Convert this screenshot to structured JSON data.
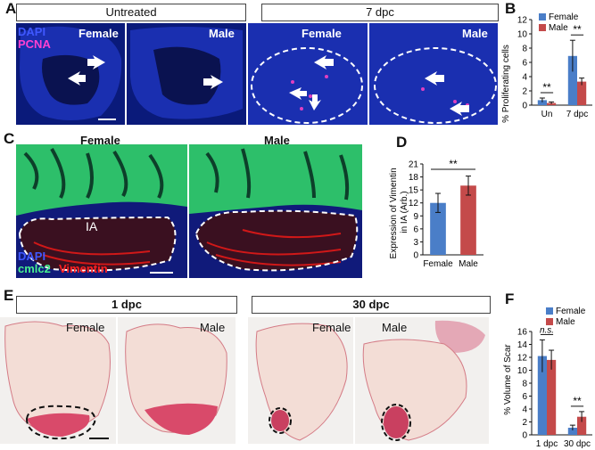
{
  "panel_labels": {
    "a": "A",
    "b": "B",
    "c": "C",
    "d": "D",
    "e": "E",
    "f": "F"
  },
  "row_a": {
    "group_untreated": "Untreated",
    "group_7dpc": "7 dpc",
    "stain_dapi": "DAPI",
    "stain_pcna": "PCNA",
    "images": [
      {
        "label": "Female"
      },
      {
        "label": "Male"
      },
      {
        "label": "Female"
      },
      {
        "label": "Male"
      }
    ]
  },
  "row_c": {
    "labels": {
      "female": "Female",
      "male": "Male",
      "ia": "IA"
    },
    "stain_dapi": "DAPI",
    "stain_cmlc2": "cmlc2",
    "stain_vimentin": "Vimentin"
  },
  "row_e": {
    "group_1dpc": "1 dpc",
    "group_30dpc": "30 dpc",
    "images": [
      {
        "label": "Female"
      },
      {
        "label": "Male"
      },
      {
        "label": "Female"
      },
      {
        "label": "Male"
      }
    ]
  },
  "colors": {
    "female": "#4a7ec8",
    "male": "#c44a4a",
    "dapi": "#1a2fb0",
    "pcna": "#e040c0",
    "cmlc2": "#3ddc7a",
    "vimentin": "#e02020"
  },
  "chart_data": [
    {
      "panel": "B",
      "type": "bar",
      "ylabel": "% Proliferating cells",
      "ylim": [
        0,
        12
      ],
      "yticks": [
        0,
        2,
        4,
        6,
        8,
        10,
        12
      ],
      "categories": [
        "Un",
        "7 dpc"
      ],
      "series": [
        {
          "name": "Female",
          "values": [
            0.7,
            6.9
          ],
          "errors": [
            0.3,
            2.2
          ]
        },
        {
          "name": "Male",
          "values": [
            0.3,
            3.3
          ],
          "errors": [
            0.15,
            0.5
          ]
        }
      ],
      "significance": [
        "**",
        "**"
      ],
      "legend": "top-right"
    },
    {
      "panel": "D",
      "type": "bar",
      "ylabel": "Expression of Vimentin in IA (Arb.)",
      "ylim": [
        0,
        21
      ],
      "yticks": [
        0,
        3,
        6,
        9,
        12,
        15,
        18,
        21
      ],
      "categories": [
        "Female",
        "Male"
      ],
      "values": [
        12.0,
        16.0
      ],
      "errors": [
        2.2,
        2.2
      ],
      "significance": "**"
    },
    {
      "panel": "F",
      "type": "bar",
      "ylabel": "% Volume of Scar",
      "ylim": [
        0,
        16
      ],
      "yticks": [
        0,
        2,
        4,
        6,
        8,
        10,
        12,
        14,
        16
      ],
      "categories": [
        "1 dpc",
        "30 dpc"
      ],
      "series": [
        {
          "name": "Female",
          "values": [
            12.2,
            1.1
          ],
          "errors": [
            2.5,
            0.4
          ]
        },
        {
          "name": "Male",
          "values": [
            11.6,
            2.8
          ],
          "errors": [
            1.5,
            0.8
          ]
        }
      ],
      "significance": [
        "n.s.",
        "**"
      ],
      "legend": "top-right"
    }
  ]
}
